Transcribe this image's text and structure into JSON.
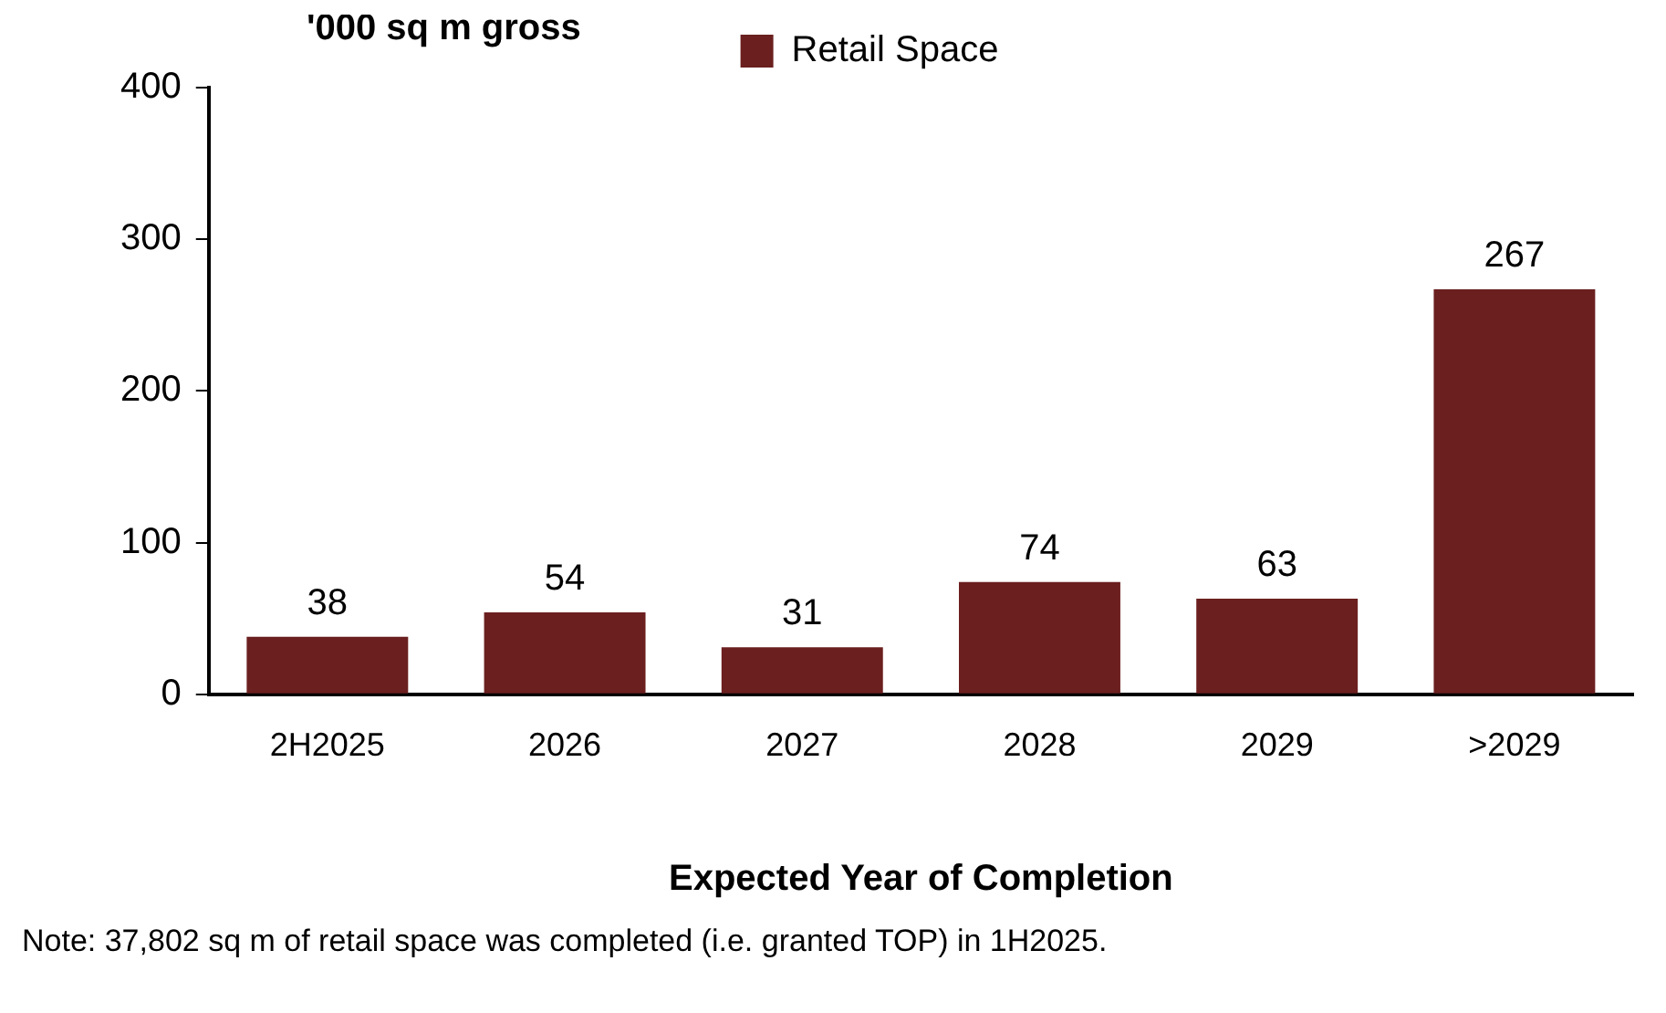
{
  "chart_data": {
    "type": "bar",
    "ylabel": "'000 sq m gross",
    "xlabel": "Expected Year of Completion",
    "categories": [
      "2H2025",
      "2026",
      "2027",
      "2028",
      "2029",
      ">2029"
    ],
    "series": [
      {
        "name": "Retail Space",
        "color": "#6b1f1f",
        "values": [
          38,
          54,
          31,
          74,
          63,
          267
        ]
      }
    ],
    "ylim": [
      0,
      400
    ],
    "yticks": [
      0,
      100,
      200,
      300,
      400
    ],
    "grid": false,
    "legend": "top",
    "data_labels": true,
    "annotations": [
      "Note: 37,802 sq m of retail space was completed (i.e. granted TOP) in 1H2025."
    ]
  }
}
